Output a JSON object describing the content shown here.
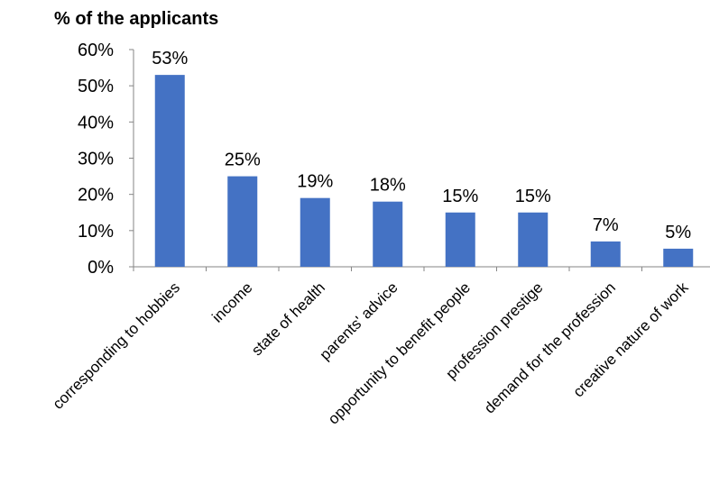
{
  "chart_data": {
    "type": "bar",
    "title": "",
    "ylabel": "% of the applicants",
    "xlabel": "",
    "categories": [
      "corresponding to hobbies",
      "income",
      "state of health",
      "parents' advice",
      "opportunity to benefit people",
      "profession prestige",
      "demand for the profession",
      "creative nature of work"
    ],
    "values": [
      53,
      25,
      19,
      18,
      15,
      15,
      7,
      5
    ],
    "data_labels": [
      "53%",
      "25%",
      "19%",
      "18%",
      "15%",
      "15%",
      "7%",
      "5%"
    ],
    "ylim": [
      0,
      60
    ],
    "yticks": [
      0,
      10,
      20,
      30,
      40,
      50,
      60
    ],
    "ytick_labels": [
      "0%",
      "10%",
      "20%",
      "30%",
      "40%",
      "50%",
      "60%"
    ],
    "grid": false,
    "legend": "none",
    "bar_color": "#4472C4",
    "axis_color": "#868686"
  }
}
